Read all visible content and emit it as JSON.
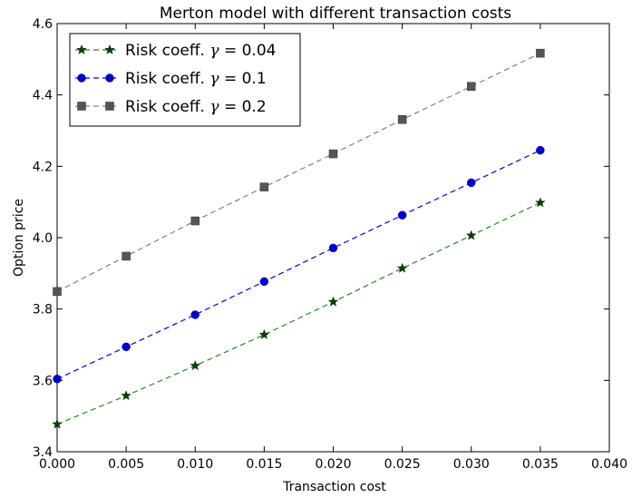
{
  "chart_data": {
    "type": "line",
    "title": "Merton model with different transaction costs",
    "xlabel": "Transaction cost",
    "ylabel": "Option price",
    "xlim": [
      0.0,
      0.04
    ],
    "ylim": [
      3.4,
      4.6
    ],
    "xticks": [
      "0.000",
      "0.005",
      "0.010",
      "0.015",
      "0.020",
      "0.025",
      "0.030",
      "0.035",
      "0.040"
    ],
    "yticks": [
      "3.4",
      "3.6",
      "3.8",
      "4.0",
      "4.2",
      "4.4",
      "4.6"
    ],
    "grid": false,
    "legend_position": "top-left",
    "x": [
      0.0,
      0.005,
      0.01,
      0.015,
      0.02,
      0.025,
      0.03,
      0.035
    ],
    "series": [
      {
        "name": "Risk coeff. γ = 0.04",
        "label_prefix": "Risk coeff. ",
        "label_symbol": "γ",
        "label_suffix": " = 0.04",
        "color": "#228b22",
        "marker_color": "#0b3d0b",
        "marker": "star",
        "values": [
          3.477,
          3.557,
          3.641,
          3.728,
          3.82,
          3.914,
          4.006,
          4.098
        ]
      },
      {
        "name": "Risk coeff. γ = 0.1",
        "label_prefix": "Risk coeff. ",
        "label_symbol": "γ",
        "label_suffix": " = 0.1",
        "color": "#0000ff",
        "marker_color": "#0000cc",
        "marker": "circle",
        "values": [
          3.604,
          3.694,
          3.784,
          3.877,
          3.971,
          4.063,
          4.154,
          4.245
        ]
      },
      {
        "name": "Risk coeff. γ = 0.2",
        "label_prefix": "Risk coeff. ",
        "label_symbol": "γ",
        "label_suffix": " = 0.2",
        "color": "#808080",
        "marker_color": "#555555",
        "marker": "square",
        "values": [
          3.849,
          3.948,
          4.047,
          4.142,
          4.235,
          4.331,
          4.424,
          4.517
        ]
      }
    ]
  }
}
